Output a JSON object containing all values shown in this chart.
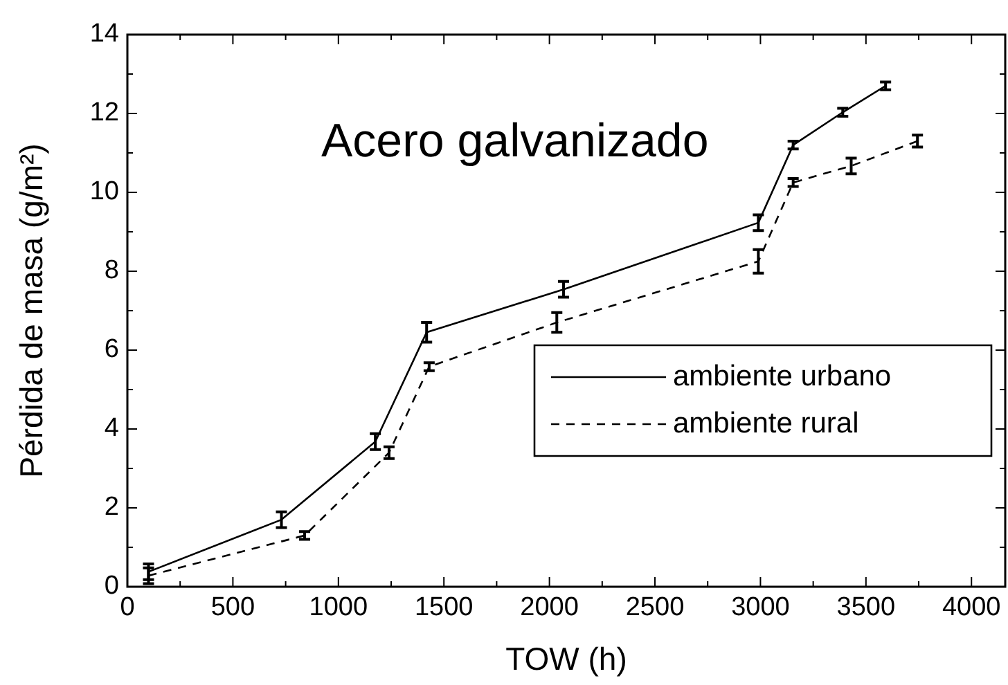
{
  "chart_data": {
    "type": "line",
    "title": "Acero galvanizado",
    "xlabel": "TOW (h)",
    "ylabel": "Pérdida de masa (g/m²)",
    "xlim": [
      0,
      4160
    ],
    "ylim": [
      0,
      14
    ],
    "xticks": [
      0,
      {
        "value": 250,
        "label": null
      },
      500,
      {
        "value": 750,
        "label": null
      },
      1000,
      {
        "value": 1250,
        "label": null
      },
      1500,
      {
        "value": 1750,
        "label": null
      },
      2000,
      {
        "value": 2250,
        "label": null
      },
      2500,
      {
        "value": 2750,
        "label": null
      },
      3000,
      {
        "value": 3250,
        "label": null
      },
      3500,
      {
        "value": 3750,
        "label": null
      },
      4000
    ],
    "yticks": [
      0,
      {
        "value": 1,
        "label": null
      },
      2,
      {
        "value": 3,
        "label": null
      },
      4,
      {
        "value": 5,
        "label": null
      },
      6,
      {
        "value": 7,
        "label": null
      },
      8,
      {
        "value": 9,
        "label": null
      },
      10,
      {
        "value": 11,
        "label": null
      },
      12,
      {
        "value": 13,
        "label": null
      },
      14
    ],
    "legend": "right",
    "marker": "none",
    "grid": false,
    "series": [
      {
        "name": "ambiente urbano",
        "color": "#000000",
        "line_style": "solid",
        "x": [
          100,
          730,
          1175,
          1418,
          2067,
          2990,
          3155,
          3390,
          3593
        ],
        "values": [
          0.38,
          1.7,
          3.68,
          6.45,
          7.54,
          9.23,
          11.2,
          12.03,
          12.7
        ],
        "errors": [
          0.2,
          0.2,
          0.2,
          0.25,
          0.2,
          0.2,
          0.1,
          0.1,
          0.1
        ]
      },
      {
        "name": "ambiente rural",
        "color": "#000000",
        "line_style": "dashed",
        "x": [
          100,
          840,
          1240,
          1430,
          2035,
          2990,
          3155,
          3430,
          3744
        ],
        "values": [
          0.28,
          1.3,
          3.4,
          5.58,
          6.7,
          8.25,
          10.25,
          10.67,
          11.3
        ],
        "errors": [
          0.2,
          0.1,
          0.15,
          0.1,
          0.25,
          0.3,
          0.1,
          0.2,
          0.15
        ]
      }
    ]
  }
}
